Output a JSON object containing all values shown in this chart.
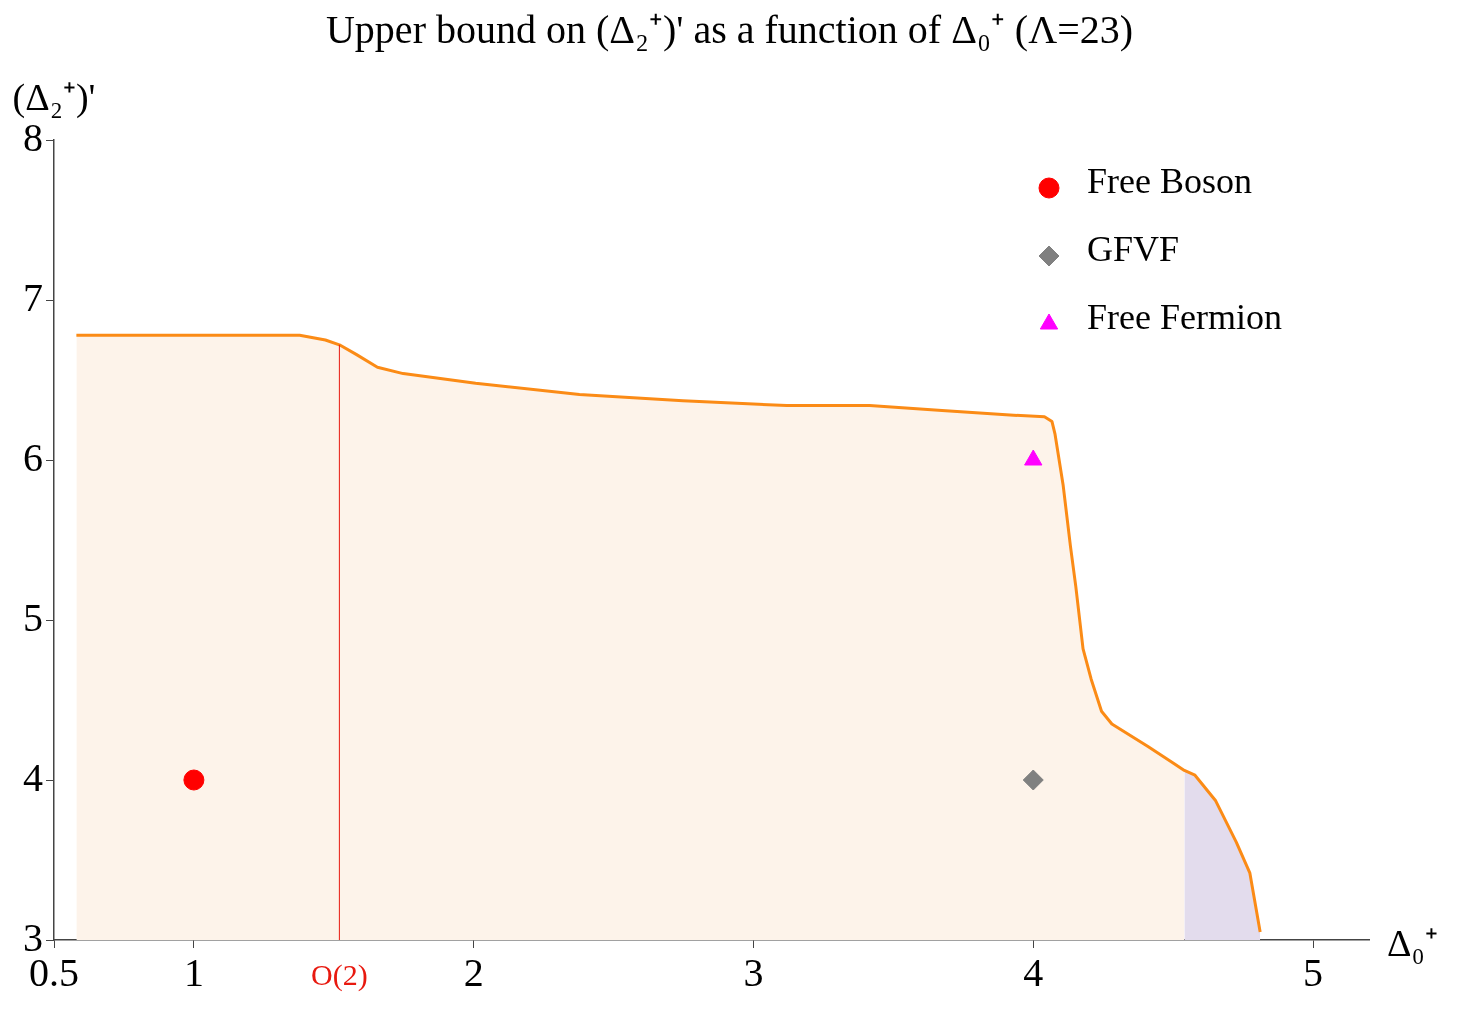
{
  "chart_data": {
    "type": "line",
    "title": "Upper bound on (Δ₂⁺)' as a function of Δ₀⁺ (Λ=23)",
    "xlabel": "Δ₀⁺",
    "ylabel": "(Δ₂⁺)'",
    "xlim": [
      0.5,
      5.2
    ],
    "ylim": [
      3,
      8
    ],
    "xticks": [
      0.5,
      1,
      2,
      3,
      4,
      5
    ],
    "yticks": [
      3,
      4,
      5,
      6,
      7,
      8
    ],
    "grid": false,
    "legend": "top right",
    "ref_lines": [
      {
        "axis": "x",
        "value": 1.52,
        "label": "O(2)",
        "color": "#e8190f"
      }
    ],
    "series": [
      {
        "type": "area",
        "color": "#fdf3ea",
        "x": [
          0.58,
          1.378,
          1.47,
          1.52,
          1.58,
          1.656,
          1.748,
          2.007,
          2.378,
          2.748,
          3.119,
          3.415,
          3.674,
          3.93,
          4.04,
          4.067,
          4.078,
          4.107,
          4.133,
          4.152,
          4.178,
          4.207,
          4.244,
          4.281,
          4.41,
          4.54
        ],
        "values": [
          6.78,
          6.78,
          6.75,
          6.72,
          6.66,
          6.58,
          6.54,
          6.48,
          6.41,
          6.37,
          6.34,
          6.34,
          6.31,
          6.28,
          6.27,
          6.24,
          6.16,
          5.84,
          5.46,
          5.21,
          4.82,
          4.63,
          4.43,
          4.35,
          4.21,
          4.06
        ]
      },
      {
        "type": "area",
        "color": "#e3dced",
        "x": [
          4.54,
          4.578,
          4.652,
          4.726,
          4.774,
          4.811
        ],
        "values": [
          4.06,
          4.03,
          3.87,
          3.61,
          3.42,
          3.05
        ]
      },
      {
        "color": "#fb8b16",
        "marker": "none",
        "x": [
          0.58,
          1.378,
          1.47,
          1.52,
          1.58,
          1.656,
          1.748,
          2.007,
          2.378,
          2.748,
          3.119,
          3.415,
          3.674,
          3.93,
          4.04,
          4.067,
          4.078,
          4.107,
          4.133,
          4.152,
          4.178,
          4.207,
          4.244,
          4.281,
          4.41,
          4.54,
          4.578,
          4.652,
          4.726,
          4.774,
          4.811
        ],
        "values": [
          6.78,
          6.78,
          6.75,
          6.72,
          6.66,
          6.58,
          6.54,
          6.48,
          6.41,
          6.37,
          6.34,
          6.34,
          6.31,
          6.28,
          6.27,
          6.24,
          6.16,
          5.84,
          5.46,
          5.21,
          4.82,
          4.63,
          4.43,
          4.35,
          4.21,
          4.06,
          4.03,
          3.87,
          3.61,
          3.42,
          3.05
        ]
      },
      {
        "type": "scatter",
        "name": "Free Boson",
        "color": "#ff0000",
        "marker": "circle",
        "x": [
          1
        ],
        "values": [
          4
        ]
      },
      {
        "type": "scatter",
        "name": "GFVF",
        "color": "#808080",
        "marker": "diamond",
        "x": [
          4
        ],
        "values": [
          4
        ]
      },
      {
        "type": "scatter",
        "name": "Free Fermion",
        "color": "#ff00ff",
        "marker": "triangle",
        "x": [
          4
        ],
        "values": [
          6
        ]
      }
    ]
  }
}
